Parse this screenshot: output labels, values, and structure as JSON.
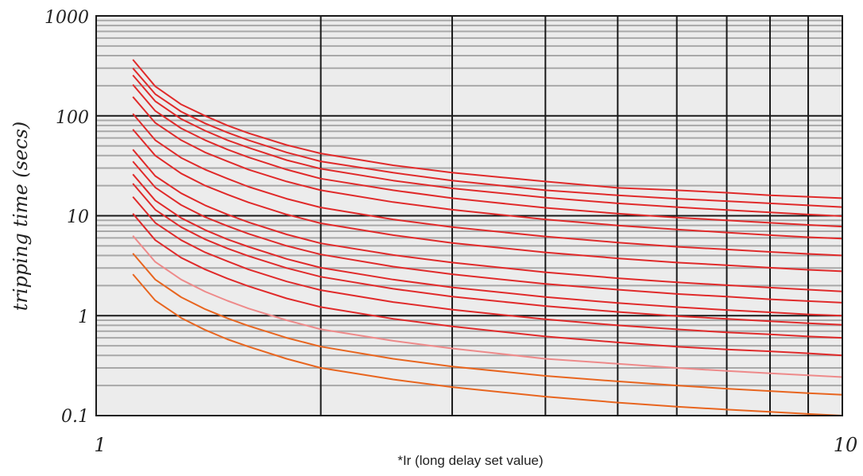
{
  "chart_data": {
    "type": "line",
    "title": "",
    "xlabel": "*Ir (long delay set value)",
    "ylabel": "tripping time (secs)",
    "x_scale": "log",
    "y_scale": "log",
    "xlim": [
      1,
      10
    ],
    "ylim": [
      0.1,
      1000
    ],
    "x_tick_labels": [
      "1",
      "10"
    ],
    "y_tick_labels": [
      "1000",
      "100",
      "10",
      "1",
      "0.1"
    ],
    "grid": true,
    "legend": "none",
    "colors": {
      "background": "#ececec",
      "grid_major": "#1a1a1a",
      "grid_minor": "#a8a8a8",
      "series_red": "#e02a2a",
      "series_pink": "#ee8a8a",
      "series_orange": "#e8651f"
    },
    "x": [
      1.12,
      1.2,
      1.3,
      1.4,
      1.5,
      1.6,
      1.8,
      2,
      2.5,
      3,
      4,
      5,
      6,
      7,
      8,
      9,
      10
    ],
    "series": [
      {
        "color": "red",
        "values": [
          365,
          197,
          130,
          100,
          80,
          67,
          51,
          42,
          32,
          27,
          22,
          19,
          18,
          17,
          16,
          15.5,
          15
        ]
      },
      {
        "color": "red",
        "values": [
          300,
          165,
          110,
          84,
          68,
          57,
          43,
          35,
          27,
          22.5,
          18,
          16,
          14.8,
          14,
          13.3,
          12.7,
          12.2
        ]
      },
      {
        "color": "red",
        "values": [
          255,
          140,
          93,
          71,
          57,
          48,
          36,
          29.5,
          22.5,
          18.8,
          15.2,
          13.3,
          12.2,
          11.4,
          10.8,
          10.3,
          9.9
        ]
      },
      {
        "color": "red",
        "values": [
          205,
          112,
          75,
          57,
          46,
          38.5,
          29,
          23.5,
          18,
          15,
          12,
          10.5,
          9.6,
          9,
          8.5,
          8.1,
          7.8
        ]
      },
      {
        "color": "red",
        "values": [
          155,
          85,
          57,
          43,
          35,
          29,
          22,
          18,
          13.7,
          11.5,
          9.2,
          8,
          7.3,
          6.8,
          6.4,
          6.1,
          5.9
        ]
      },
      {
        "color": "red",
        "values": [
          105,
          57,
          38,
          29,
          23.5,
          19.5,
          14.8,
          12.1,
          9.2,
          7.7,
          6.2,
          5.4,
          4.9,
          4.6,
          4.35,
          4.15,
          4
        ]
      },
      {
        "color": "red",
        "values": [
          73,
          40,
          26.5,
          20,
          16.3,
          13.6,
          10.3,
          8.4,
          6.4,
          5.35,
          4.3,
          3.75,
          3.4,
          3.2,
          3.02,
          2.88,
          2.78
        ]
      },
      {
        "color": "red",
        "values": [
          46,
          25,
          16.8,
          12.7,
          10.3,
          8.6,
          6.5,
          5.3,
          4.05,
          3.4,
          2.72,
          2.37,
          2.16,
          2.02,
          1.91,
          1.82,
          1.75
        ]
      },
      {
        "color": "red",
        "values": [
          35,
          19.2,
          12.8,
          9.7,
          7.9,
          6.6,
          5,
          4.1,
          3.1,
          2.6,
          2.08,
          1.82,
          1.65,
          1.55,
          1.46,
          1.4,
          1.35
        ]
      },
      {
        "color": "red",
        "values": [
          26,
          14.2,
          9.5,
          7.2,
          5.8,
          4.9,
          3.7,
          3.02,
          2.3,
          1.92,
          1.54,
          1.34,
          1.22,
          1.14,
          1.08,
          1.03,
          1
        ]
      },
      {
        "color": "red",
        "values": [
          21,
          11.5,
          7.7,
          5.8,
          4.7,
          3.95,
          3,
          2.45,
          1.86,
          1.55,
          1.25,
          1.09,
          0.99,
          0.93,
          0.88,
          0.84,
          0.81
        ]
      },
      {
        "color": "red",
        "values": [
          15.5,
          8.5,
          5.7,
          4.3,
          3.5,
          2.9,
          2.2,
          1.8,
          1.37,
          1.15,
          0.92,
          0.8,
          0.73,
          0.68,
          0.65,
          0.62,
          0.6
        ]
      },
      {
        "color": "red",
        "values": [
          10.5,
          5.7,
          3.8,
          2.9,
          2.35,
          1.97,
          1.49,
          1.22,
          0.93,
          0.78,
          0.62,
          0.54,
          0.49,
          0.46,
          0.44,
          0.42,
          0.4
        ]
      },
      {
        "color": "pink",
        "values": [
          6.3,
          3.45,
          2.3,
          1.74,
          1.41,
          1.18,
          0.9,
          0.73,
          0.56,
          0.47,
          0.37,
          0.33,
          0.3,
          0.28,
          0.265,
          0.253,
          0.243
        ]
      },
      {
        "color": "orange",
        "values": [
          4.2,
          2.3,
          1.53,
          1.16,
          0.94,
          0.79,
          0.6,
          0.49,
          0.37,
          0.31,
          0.25,
          0.22,
          0.2,
          0.186,
          0.176,
          0.168,
          0.162
        ]
      },
      {
        "color": "orange",
        "values": [
          2.6,
          1.42,
          0.95,
          0.72,
          0.58,
          0.49,
          0.37,
          0.3,
          0.23,
          0.193,
          0.155,
          0.135,
          0.123,
          0.115,
          0.109,
          0.104,
          0.1
        ]
      }
    ]
  }
}
